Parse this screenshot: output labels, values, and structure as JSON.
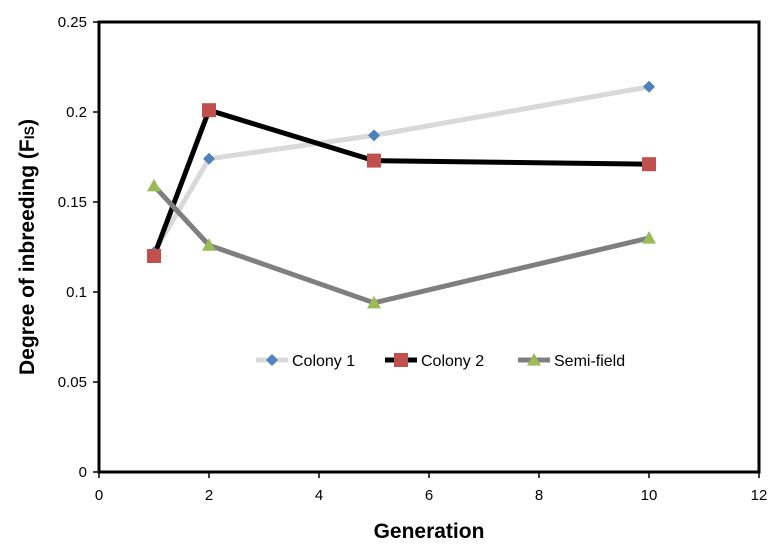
{
  "chart_data": {
    "type": "line",
    "title": "",
    "xlabel": "Generation",
    "ylabel": "Degree of inbreeding (F",
    "ylabel_subscript": "IS",
    "ylabel_close": ")",
    "xlim": [
      0,
      12
    ],
    "ylim": [
      0,
      0.25
    ],
    "x_ticks": [
      "0",
      "2",
      "4",
      "6",
      "8",
      "10",
      "12"
    ],
    "y_ticks": [
      "0",
      "0.05",
      "0.1",
      "0.15",
      "0.2",
      "0.25"
    ],
    "grid": false,
    "legend_position": "inside-lower-center",
    "series": [
      {
        "name": "Colony 1",
        "color": "#d9d9d9",
        "marker": "diamond",
        "marker_color": "#4f81bd",
        "x": [
          1,
          2,
          5,
          10
        ],
        "y": [
          0.122,
          0.174,
          0.187,
          0.214
        ]
      },
      {
        "name": "Colony 2",
        "color": "#000000",
        "marker": "square",
        "marker_color": "#c0504d",
        "x": [
          1,
          2,
          5,
          10
        ],
        "y": [
          0.12,
          0.201,
          0.173,
          0.171
        ]
      },
      {
        "name": "Semi-field",
        "color": "#7f7f7f",
        "marker": "triangle",
        "marker_color": "#9bbb59",
        "x": [
          1,
          2,
          5,
          10
        ],
        "y": [
          0.159,
          0.126,
          0.094,
          0.13
        ]
      }
    ]
  }
}
